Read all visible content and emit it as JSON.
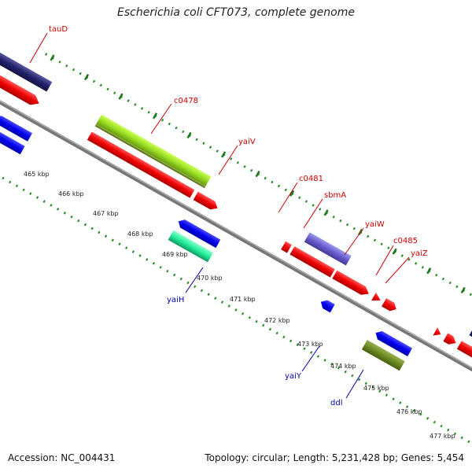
{
  "title": "Escherichia coli CFT073, complete genome",
  "footer": {
    "accession": "Accession: NC_004431",
    "stats": "Topology: circular; Length: 5,231,428 bp; Genes: 5,454"
  },
  "colors": {
    "forward_label": "#cc0000",
    "reverse_label": "#0000aa",
    "backbone": "#888888",
    "tick_dots": "#228822"
  },
  "ticks": [
    {
      "label": "465 kbp"
    },
    {
      "label": "466 kbp"
    },
    {
      "label": "467 kbp"
    },
    {
      "label": "468 kbp"
    },
    {
      "label": "469 kbp"
    },
    {
      "label": "470 kbp"
    },
    {
      "label": "471 kbp"
    },
    {
      "label": "472 kbp"
    },
    {
      "label": "473 kbp"
    },
    {
      "label": "474 kbp"
    },
    {
      "label": "475 kbp"
    },
    {
      "label": "476 kbp"
    },
    {
      "label": "477 kbp"
    }
  ],
  "gene_labels": [
    {
      "name": "tauD",
      "strand": "forward"
    },
    {
      "name": "c0478",
      "strand": "forward"
    },
    {
      "name": "yaiV",
      "strand": "forward"
    },
    {
      "name": "c0481",
      "strand": "forward"
    },
    {
      "name": "sbmA",
      "strand": "forward"
    },
    {
      "name": "yaiW",
      "strand": "forward"
    },
    {
      "name": "c0485",
      "strand": "forward"
    },
    {
      "name": "yaiZ",
      "strand": "forward"
    },
    {
      "name": "yaiH",
      "strand": "reverse"
    },
    {
      "name": "yaiY",
      "strand": "reverse"
    },
    {
      "name": "ddl",
      "strand": "reverse"
    }
  ]
}
